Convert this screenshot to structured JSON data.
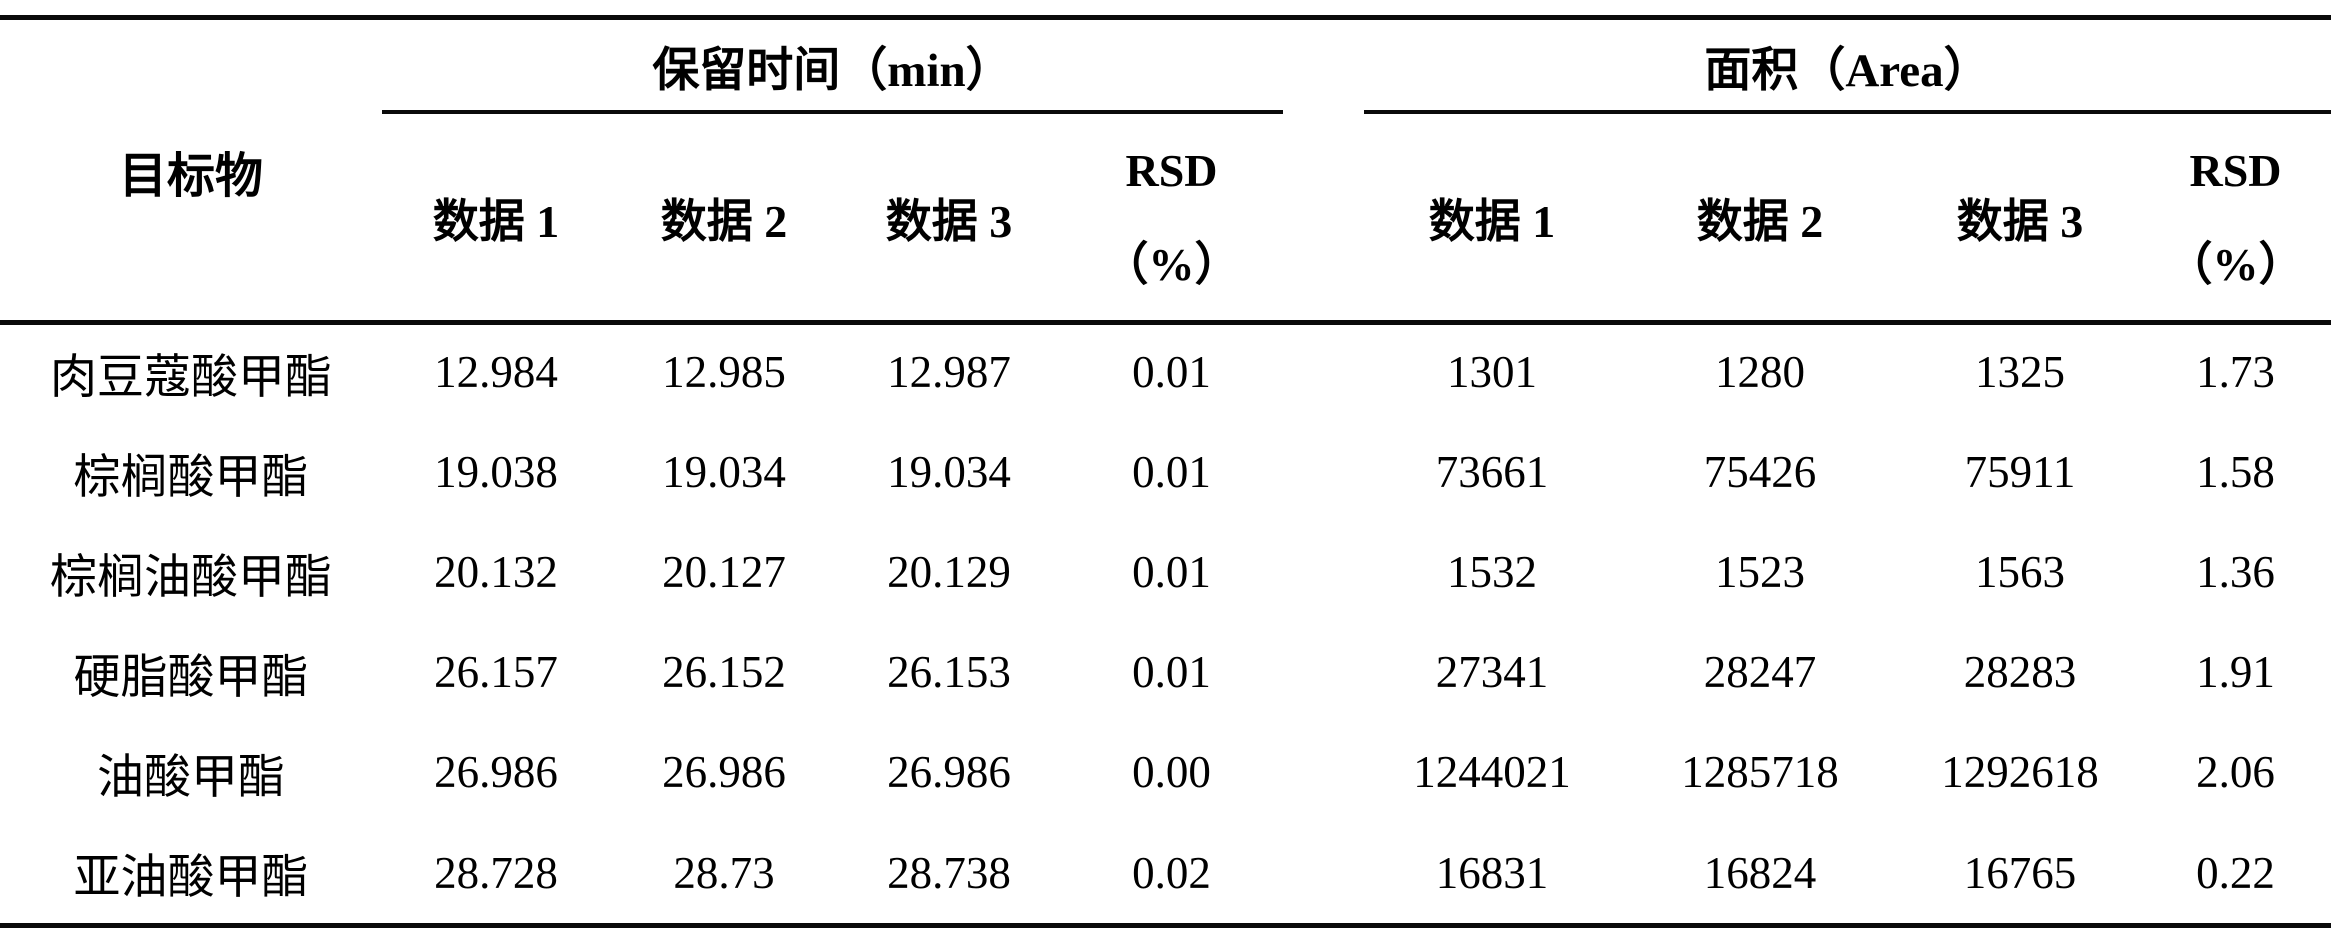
{
  "page": {
    "background": "#ffffff",
    "text_color": "#000000",
    "rule_color": "#0a0a0a"
  },
  "table": {
    "target_header": "目标物",
    "groups": [
      {
        "title": "保留时间（min）",
        "col1": "数据 1",
        "col2": "数据 2",
        "col3": "数据 3",
        "rsd_line1": "RSD",
        "rsd_line2": "（%）"
      },
      {
        "title": "面积（Area）",
        "col1": "数据 1",
        "col2": "数据 2",
        "col3": "数据 3",
        "rsd_line1": "RSD",
        "rsd_line2": "（%）"
      }
    ],
    "rows": [
      {
        "target": "肉豆蔻酸甲酯",
        "rt1": "12.984",
        "rt2": "12.985",
        "rt3": "12.987",
        "rt_rsd": "0.01",
        "a1": "1301",
        "a2": "1280",
        "a3": "1325",
        "a_rsd": "1.73"
      },
      {
        "target": "棕榈酸甲酯",
        "rt1": "19.038",
        "rt2": "19.034",
        "rt3": "19.034",
        "rt_rsd": "0.01",
        "a1": "73661",
        "a2": "75426",
        "a3": "75911",
        "a_rsd": "1.58"
      },
      {
        "target": "棕榈油酸甲酯",
        "rt1": "20.132",
        "rt2": "20.127",
        "rt3": "20.129",
        "rt_rsd": "0.01",
        "a1": "1532",
        "a2": "1523",
        "a3": "1563",
        "a_rsd": "1.36"
      },
      {
        "target": "硬脂酸甲酯",
        "rt1": "26.157",
        "rt2": "26.152",
        "rt3": "26.153",
        "rt_rsd": "0.01",
        "a1": "27341",
        "a2": "28247",
        "a3": "28283",
        "a_rsd": "1.91"
      },
      {
        "target": "油酸甲酯",
        "rt1": "26.986",
        "rt2": "26.986",
        "rt3": "26.986",
        "rt_rsd": "0.00",
        "a1": "1244021",
        "a2": "1285718",
        "a3": "1292618",
        "a_rsd": "2.06"
      },
      {
        "target": "亚油酸甲酯",
        "rt1": "28.728",
        "rt2": "28.73",
        "rt3": "28.738",
        "rt_rsd": "0.02",
        "a1": "16831",
        "a2": "16824",
        "a3": "16765",
        "a_rsd": "0.22"
      }
    ]
  }
}
